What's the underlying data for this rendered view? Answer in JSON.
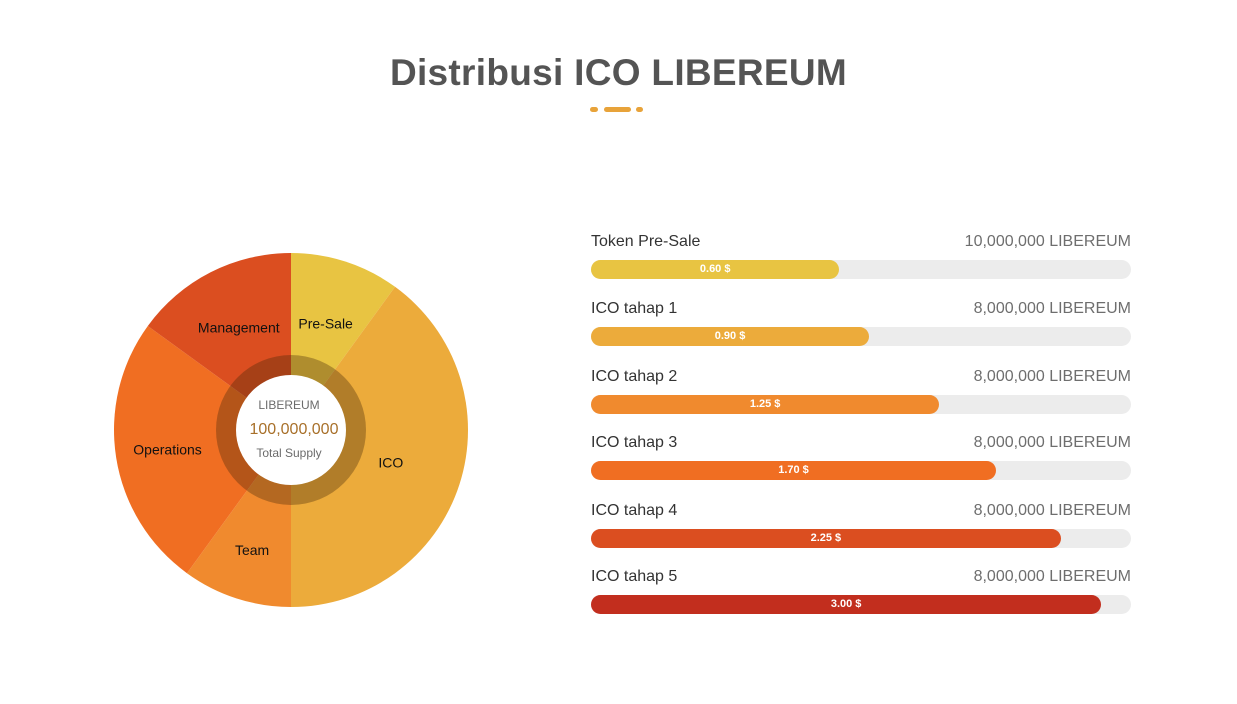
{
  "title": "Distribusi ICO LIBEREUM",
  "center": {
    "token": "LIBEREUM",
    "supply": "100,000,000",
    "caption": "Total Supply"
  },
  "chart_data": [
    {
      "type": "pie",
      "style": "donut",
      "title": "",
      "categories": [
        "Pre-Sale",
        "ICO",
        "Team",
        "Operations",
        "Management"
      ],
      "values": [
        10,
        40,
        10,
        25,
        15
      ],
      "colors": [
        "#E8C442",
        "#ECAB3B",
        "#F08A2E",
        "#F06E22",
        "#DB4E20"
      ]
    },
    {
      "type": "bar",
      "orientation": "horizontal",
      "title": "",
      "categories": [
        "Token Pre-Sale",
        "ICO tahap 1",
        "ICO tahap 2",
        "ICO tahap 3",
        "ICO tahap 4",
        "ICO tahap 5"
      ],
      "amounts": [
        "10,000,000 LIBEREUM",
        "8,000,000 LIBEREUM",
        "8,000,000 LIBEREUM",
        "8,000,000 LIBEREUM",
        "8,000,000 LIBEREUM",
        "8,000,000 LIBEREUM"
      ],
      "price_labels": [
        "0.60 $",
        "0.90 $",
        "1.25 $",
        "1.70 $",
        "2.25 $",
        "3.00 $"
      ],
      "values": [
        0.6,
        0.9,
        1.25,
        1.7,
        2.25,
        3.0
      ],
      "fill_percent": [
        46,
        51.5,
        64.5,
        75,
        87,
        94.5
      ],
      "colors": [
        "#E8C442",
        "#ECAB3B",
        "#F08A2E",
        "#F06E22",
        "#DB4E20",
        "#C22E1E"
      ]
    }
  ]
}
